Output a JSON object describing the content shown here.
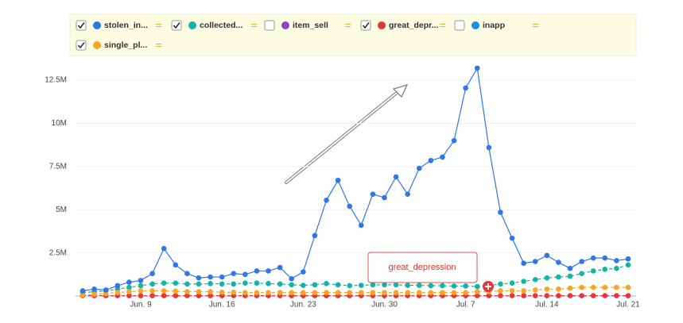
{
  "chart_data": {
    "type": "line",
    "annotation": "great_depression",
    "categories": [
      null,
      null,
      null,
      null,
      null,
      "Jun. 9",
      null,
      null,
      null,
      null,
      null,
      null,
      "Jun. 16",
      null,
      null,
      null,
      null,
      null,
      null,
      "Jun. 23",
      null,
      null,
      null,
      null,
      null,
      null,
      "Jun. 30",
      null,
      null,
      null,
      null,
      null,
      null,
      "Jul. 7",
      null,
      null,
      null,
      null,
      null,
      null,
      "Jul. 14",
      null,
      null,
      null,
      null,
      null,
      null,
      "Jul. 21"
    ],
    "series": [
      {
        "name": "stolen_in...",
        "color": "#2f76e8",
        "visible": true,
        "dashed": false,
        "values": [
          300000,
          400000,
          350000,
          600000,
          800000,
          900000,
          1300000,
          2750000,
          1800000,
          1300000,
          1050000,
          1100000,
          1100000,
          1300000,
          1250000,
          1450000,
          1450000,
          1650000,
          1000000,
          1400000,
          3500000,
          5550000,
          6700000,
          5200000,
          4100000,
          5900000,
          5700000,
          6900000,
          5900000,
          7400000,
          7850000,
          8050000,
          9000000,
          12050000,
          13200000,
          8600000,
          4850000,
          3350000,
          1900000,
          2000000,
          2350000,
          1950000,
          1600000,
          2000000,
          2200000,
          2200000,
          2050000,
          2150000
        ]
      },
      {
        "name": "collected...",
        "color": "#0fb5a6",
        "visible": true,
        "dashed": true,
        "values": [
          200000,
          250000,
          300000,
          400000,
          500000,
          600000,
          700000,
          750000,
          750000,
          700000,
          700000,
          720000,
          700000,
          700000,
          750000,
          750000,
          720000,
          700000,
          650000,
          620000,
          650000,
          720000,
          650000,
          600000,
          620000,
          650000,
          650000,
          650000,
          620000,
          620000,
          600000,
          600000,
          580000,
          580000,
          550000,
          600000,
          700000,
          750000,
          850000,
          950000,
          1050000,
          1100000,
          1150000,
          1300000,
          1450000,
          1550000,
          1600000,
          1800000
        ]
      },
      {
        "name": "item_sell",
        "color": "#8e44c4",
        "visible": false
      },
      {
        "name": "great_depr...",
        "color": "#e8353c",
        "visible": true,
        "dashed": true,
        "values": [
          20000,
          20000,
          20000,
          20000,
          20000,
          20000,
          20000,
          20000,
          20000,
          20000,
          20000,
          20000,
          20000,
          20000,
          20000,
          20000,
          20000,
          20000,
          20000,
          20000,
          20000,
          20000,
          20000,
          20000,
          20000,
          20000,
          20000,
          20000,
          20000,
          20000,
          20000,
          20000,
          20000,
          20000,
          20000,
          20000,
          20000,
          20000,
          20000,
          20000,
          20000,
          20000,
          20000,
          20000,
          20000,
          20000,
          20000,
          20000
        ]
      },
      {
        "name": "inapp",
        "color": "#1a8fe0",
        "visible": false
      },
      {
        "name": "single_pl...",
        "color": "#f5a623",
        "visible": true,
        "dashed": true,
        "values": [
          50000,
          100000,
          150000,
          200000,
          250000,
          300000,
          300000,
          300000,
          280000,
          250000,
          250000,
          250000,
          220000,
          220000,
          200000,
          200000,
          200000,
          200000,
          200000,
          200000,
          200000,
          200000,
          200000,
          200000,
          200000,
          200000,
          200000,
          200000,
          200000,
          200000,
          200000,
          200000,
          200000,
          200000,
          250000,
          250000,
          300000,
          300000,
          300000,
          350000,
          400000,
          400000,
          450000,
          500000,
          500000,
          500000,
          500000,
          500000
        ]
      }
    ],
    "ylim": [
      0,
      13700000
    ],
    "yticks": [
      {
        "value": 2500000,
        "label": "2.5M"
      },
      {
        "value": 5000000,
        "label": "5M"
      },
      {
        "value": 7500000,
        "label": "7.5M"
      },
      {
        "value": 10000000,
        "label": "10M"
      },
      {
        "value": 12500000,
        "label": "12.5M"
      }
    ],
    "grid": true
  }
}
